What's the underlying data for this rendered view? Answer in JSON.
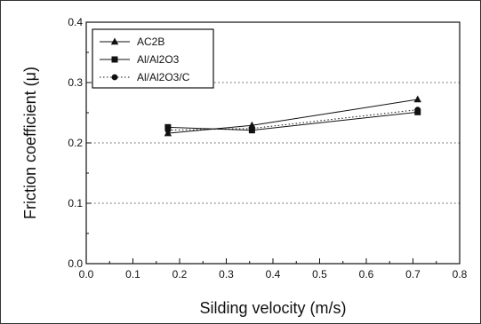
{
  "chart_data": {
    "type": "line",
    "xlabel": "Silding velocity (m/s)",
    "ylabel": "Friction coefficient (μ)",
    "xlim": [
      0.0,
      0.8
    ],
    "ylim": [
      0.0,
      0.4
    ],
    "xticks": [
      "0.0",
      "0.1",
      "0.2",
      "0.3",
      "0.4",
      "0.5",
      "0.6",
      "0.7",
      "0.8"
    ],
    "yticks": [
      "0.0",
      "0.1",
      "0.2",
      "0.3",
      "0.4"
    ],
    "x_tick_values": [
      0.0,
      0.1,
      0.2,
      0.3,
      0.4,
      0.5,
      0.6,
      0.7,
      0.8
    ],
    "y_tick_values": [
      0.0,
      0.1,
      0.2,
      0.3,
      0.4
    ],
    "grid": "horizontal dotted",
    "legend_position": "top-left",
    "series": [
      {
        "name": "AC2B",
        "marker": "triangle",
        "line": "solid",
        "x": [
          0.175,
          0.355,
          0.71
        ],
        "y": [
          0.216,
          0.229,
          0.272
        ]
      },
      {
        "name": "Al/Al2O3",
        "marker": "square",
        "line": "solid",
        "x": [
          0.175,
          0.355,
          0.71
        ],
        "y": [
          0.226,
          0.221,
          0.251
        ]
      },
      {
        "name": "Al/Al2O3/C",
        "marker": "circle",
        "line": "dotted",
        "x": [
          0.175,
          0.355,
          0.71
        ],
        "y": [
          0.221,
          0.224,
          0.255
        ]
      }
    ]
  }
}
